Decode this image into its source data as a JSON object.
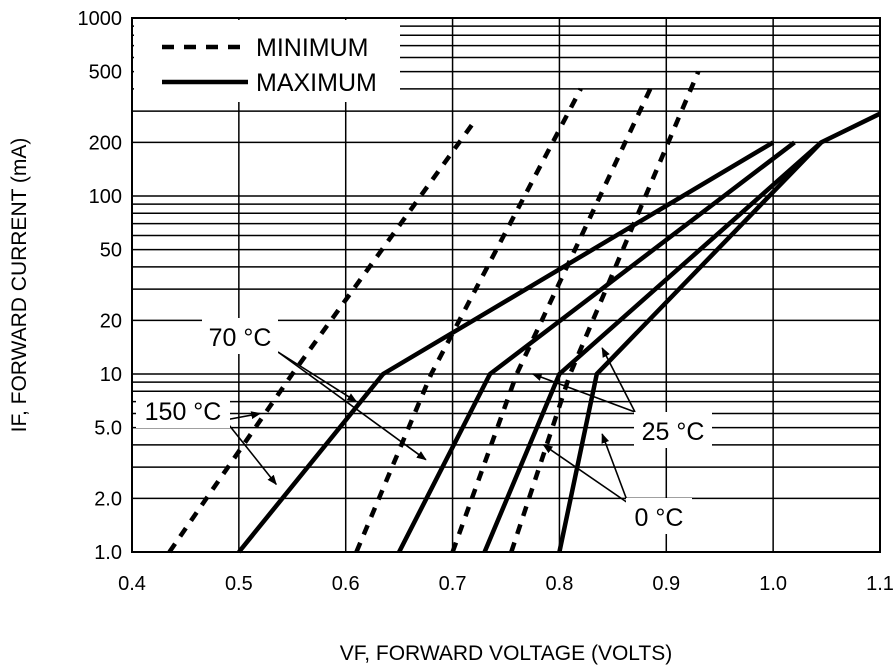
{
  "chart_data": {
    "type": "line",
    "xlabel": "VF, FORWARD VOLTAGE (VOLTS)",
    "ylabel": "IF, FORWARD CURRENT (mA)",
    "xlim": [
      0.4,
      1.1
    ],
    "ylim": [
      1.0,
      1000
    ],
    "y_scale": "log",
    "grid": true,
    "x_ticks": [
      {
        "v": 0.4,
        "label": "0.4"
      },
      {
        "v": 0.5,
        "label": "0.5"
      },
      {
        "v": 0.6,
        "label": "0.6"
      },
      {
        "v": 0.7,
        "label": "0.7"
      },
      {
        "v": 0.8,
        "label": "0.8"
      },
      {
        "v": 0.9,
        "label": "0.9"
      },
      {
        "v": 1.0,
        "label": "1.0"
      },
      {
        "v": 1.1,
        "label": "1.1"
      }
    ],
    "y_ticks": [
      {
        "v": 1,
        "label": "1.0"
      },
      {
        "v": 2,
        "label": "2.0"
      },
      {
        "v": 5,
        "label": "5.0"
      },
      {
        "v": 10,
        "label": "10"
      },
      {
        "v": 20,
        "label": "20"
      },
      {
        "v": 50,
        "label": "50"
      },
      {
        "v": 100,
        "label": "100"
      },
      {
        "v": 200,
        "label": "200"
      },
      {
        "v": 500,
        "label": "500"
      },
      {
        "v": 1000,
        "label": "1000"
      }
    ],
    "legend": {
      "position": "top-left",
      "entries": [
        {
          "label": "MINIMUM",
          "style": "dashed"
        },
        {
          "label": "MAXIMUM",
          "style": "solid"
        }
      ]
    },
    "series": [
      {
        "style": "dashed",
        "temperature": "150 °C",
        "points": [
          [
            0.435,
            1
          ],
          [
            0.55,
            10
          ],
          [
            0.72,
            260
          ]
        ]
      },
      {
        "style": "dashed",
        "temperature": "70 °C",
        "points": [
          [
            0.61,
            1
          ],
          [
            0.68,
            10
          ],
          [
            0.82,
            400
          ]
        ]
      },
      {
        "style": "dashed",
        "temperature": "25 °C",
        "points": [
          [
            0.7,
            1
          ],
          [
            0.76,
            10
          ],
          [
            0.885,
            400
          ]
        ]
      },
      {
        "style": "dashed",
        "temperature": "0 °C",
        "points": [
          [
            0.755,
            1
          ],
          [
            0.81,
            10
          ],
          [
            0.93,
            500
          ]
        ]
      },
      {
        "style": "solid",
        "temperature": "150 °C",
        "points": [
          [
            0.5,
            1
          ],
          [
            0.635,
            10
          ],
          [
            1.0,
            200
          ]
        ]
      },
      {
        "style": "solid",
        "temperature": "70 °C",
        "points": [
          [
            0.65,
            1
          ],
          [
            0.735,
            10
          ],
          [
            1.02,
            200
          ]
        ]
      },
      {
        "style": "solid",
        "temperature": "25 °C",
        "points": [
          [
            0.73,
            1
          ],
          [
            0.8,
            10
          ],
          [
            1.045,
            200
          ]
        ]
      },
      {
        "style": "solid",
        "temperature": "0 °C",
        "points": [
          [
            0.8,
            1
          ],
          [
            0.835,
            10
          ],
          [
            1.045,
            200
          ],
          [
            1.1,
            290
          ]
        ]
      }
    ],
    "annotations": [
      {
        "label": "70 °C"
      },
      {
        "label": "150 °C"
      },
      {
        "label": "25 °C"
      },
      {
        "label": "0 °C"
      }
    ]
  }
}
